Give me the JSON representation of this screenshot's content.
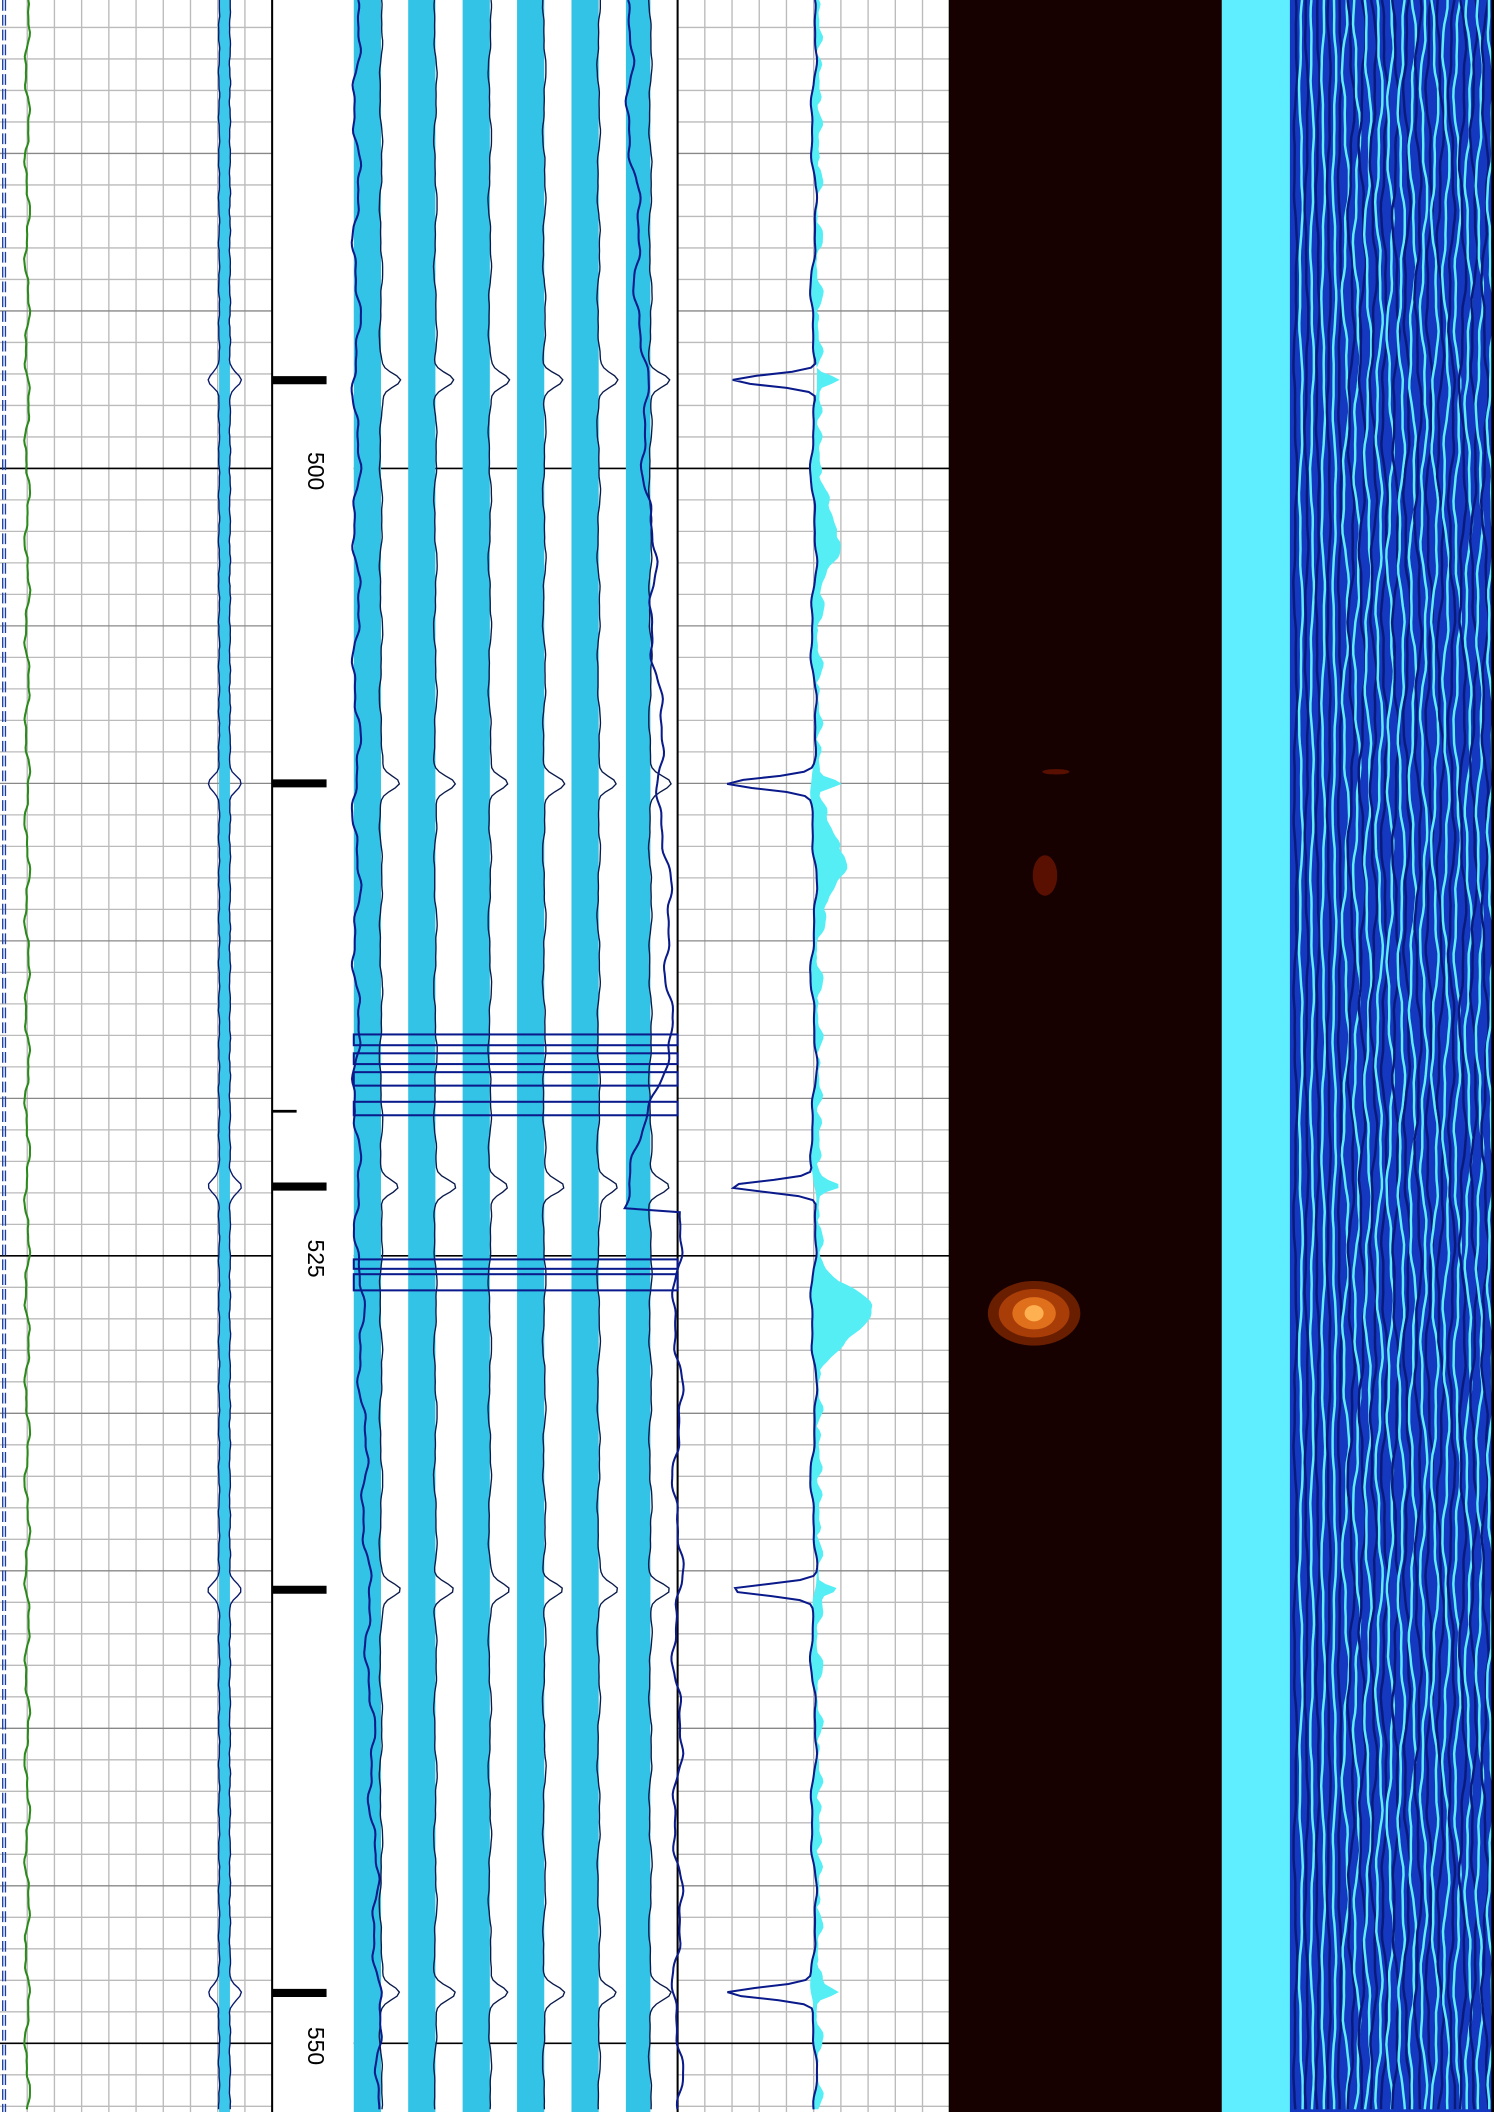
{
  "chart_data": {
    "type": "well-log",
    "ylim": [
      485.13,
      552.18
    ],
    "yticks": [
      500,
      525,
      550
    ],
    "depth_marks": [
      497.2,
      510.0,
      522.8,
      535.6,
      548.4
    ],
    "grid": true
  }
}
